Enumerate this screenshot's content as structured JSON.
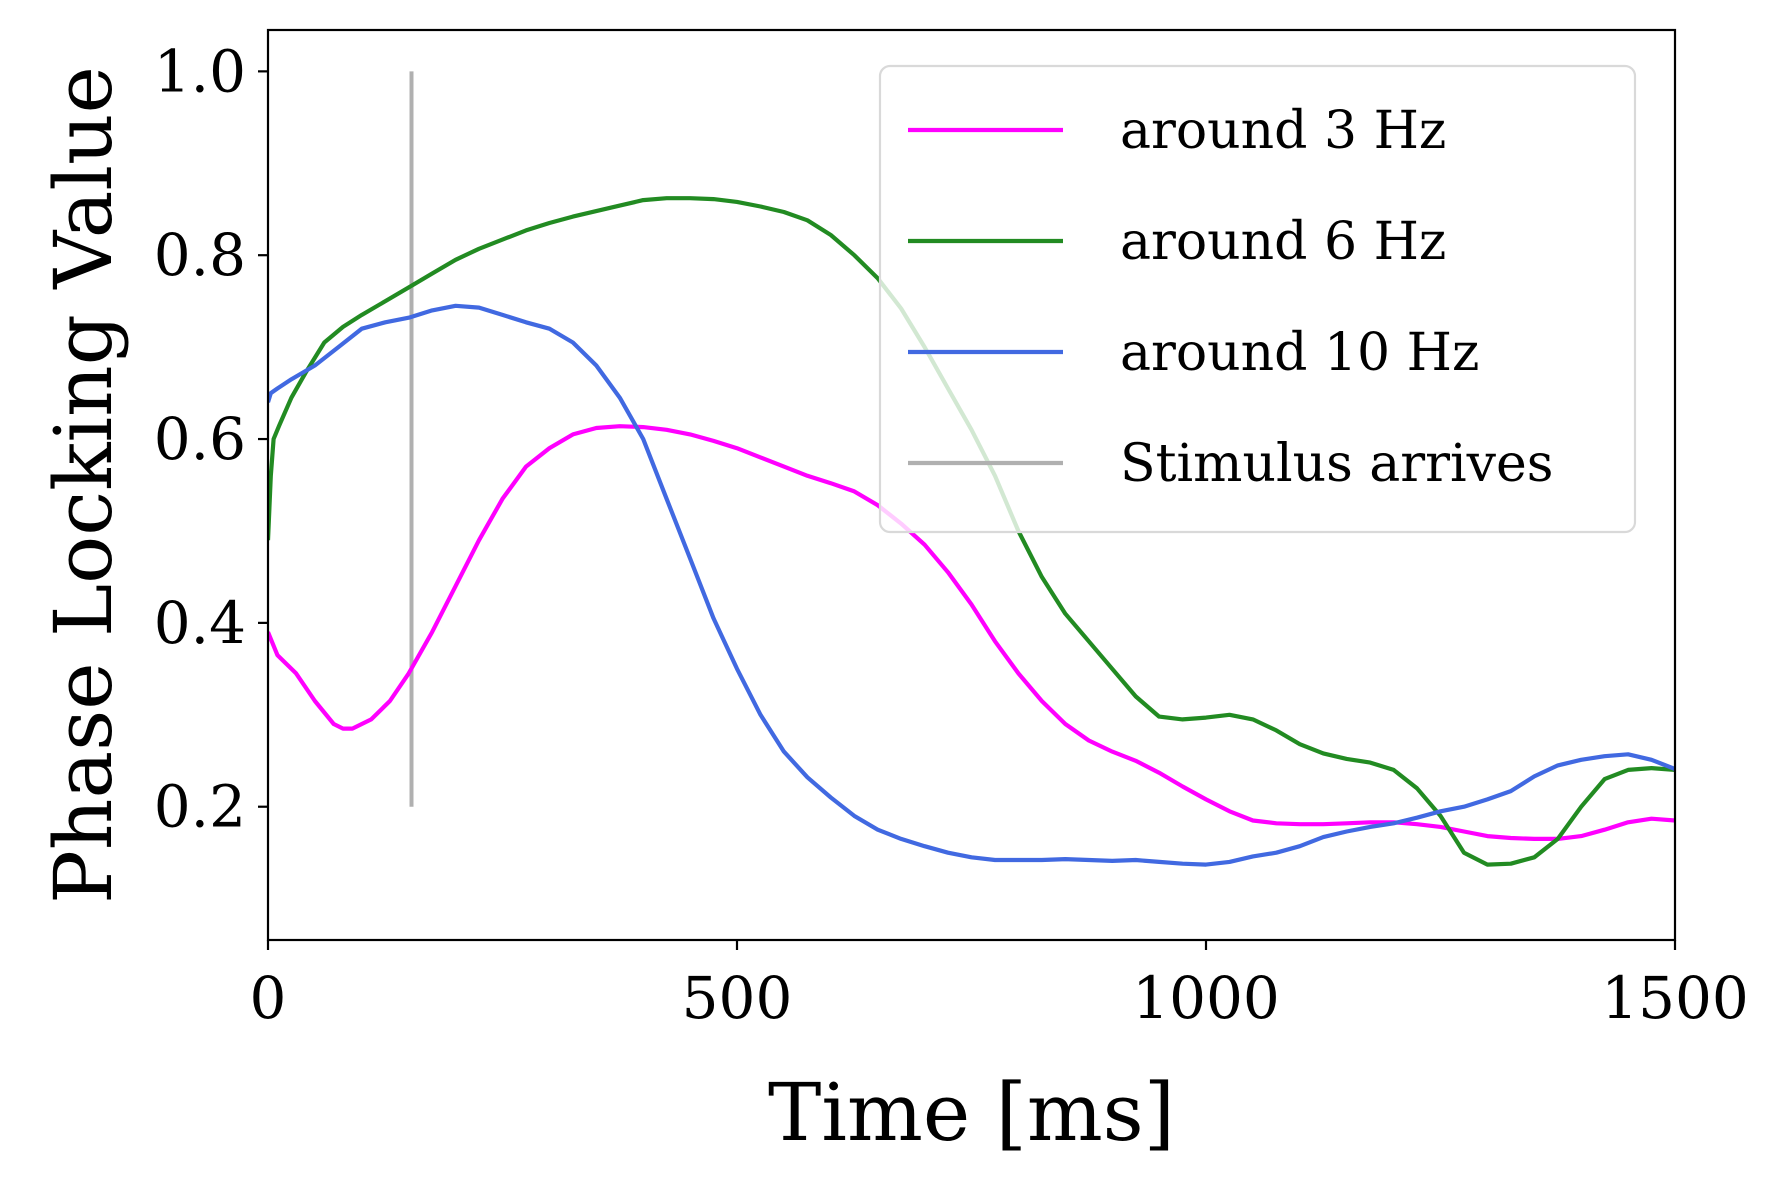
{
  "chart_data": {
    "type": "line",
    "xlabel": "Time [ms]",
    "ylabel": "Phase Locking Value",
    "xlim": [
      0,
      1500
    ],
    "ylim": [
      0.055,
      1.045
    ],
    "xticks": [
      0,
      500,
      1000,
      1500
    ],
    "yticks": [
      0.2,
      0.4,
      0.6,
      0.8,
      1.0
    ],
    "xtick_labels": [
      "0",
      "500",
      "1000",
      "1500"
    ],
    "ytick_labels": [
      "0.2",
      "0.4",
      "0.6",
      "0.8",
      "1.0"
    ],
    "grid": false,
    "legend_position": "top-right",
    "series": [
      {
        "name": "around 3 Hz",
        "color": "#ff00ff",
        "x": [
          0,
          10,
          30,
          50,
          70,
          80,
          90,
          110,
          130,
          150,
          175,
          200,
          225,
          250,
          275,
          300,
          325,
          350,
          375,
          400,
          425,
          450,
          475,
          500,
          525,
          550,
          575,
          600,
          625,
          650,
          675,
          700,
          725,
          750,
          775,
          800,
          825,
          850,
          875,
          900,
          925,
          950,
          975,
          1000,
          1025,
          1050,
          1075,
          1100,
          1125,
          1150,
          1175,
          1200,
          1225,
          1250,
          1275,
          1300,
          1325,
          1350,
          1375,
          1400,
          1425,
          1450,
          1475,
          1500
        ],
        "y": [
          0.39,
          0.365,
          0.345,
          0.315,
          0.29,
          0.285,
          0.285,
          0.295,
          0.315,
          0.345,
          0.39,
          0.44,
          0.49,
          0.535,
          0.57,
          0.59,
          0.605,
          0.612,
          0.614,
          0.613,
          0.61,
          0.605,
          0.598,
          0.59,
          0.58,
          0.57,
          0.56,
          0.552,
          0.543,
          0.528,
          0.508,
          0.485,
          0.455,
          0.42,
          0.38,
          0.345,
          0.315,
          0.29,
          0.272,
          0.26,
          0.25,
          0.237,
          0.222,
          0.208,
          0.195,
          0.185,
          0.182,
          0.181,
          0.181,
          0.182,
          0.183,
          0.183,
          0.181,
          0.178,
          0.173,
          0.168,
          0.166,
          0.165,
          0.165,
          0.168,
          0.175,
          0.183,
          0.187,
          0.185
        ]
      },
      {
        "name": "around 6 Hz",
        "color": "#228b22",
        "x": [
          0,
          3,
          6,
          12,
          25,
          40,
          60,
          80,
          100,
          125,
          150,
          175,
          200,
          225,
          250,
          275,
          300,
          325,
          350,
          375,
          400,
          425,
          450,
          475,
          500,
          525,
          550,
          575,
          600,
          625,
          650,
          675,
          700,
          725,
          750,
          775,
          800,
          825,
          850,
          875,
          900,
          925,
          950,
          975,
          1000,
          1025,
          1050,
          1075,
          1100,
          1125,
          1150,
          1175,
          1200,
          1225,
          1250,
          1275,
          1300,
          1325,
          1350,
          1375,
          1400,
          1425,
          1450,
          1475,
          1500
        ],
        "y": [
          0.49,
          0.56,
          0.6,
          0.615,
          0.645,
          0.672,
          0.705,
          0.722,
          0.735,
          0.75,
          0.765,
          0.78,
          0.795,
          0.807,
          0.817,
          0.827,
          0.835,
          0.842,
          0.848,
          0.854,
          0.86,
          0.862,
          0.862,
          0.861,
          0.858,
          0.853,
          0.847,
          0.838,
          0.822,
          0.8,
          0.775,
          0.742,
          0.7,
          0.655,
          0.61,
          0.56,
          0.5,
          0.45,
          0.41,
          0.38,
          0.35,
          0.32,
          0.298,
          0.295,
          0.297,
          0.3,
          0.295,
          0.283,
          0.268,
          0.258,
          0.252,
          0.248,
          0.24,
          0.22,
          0.19,
          0.15,
          0.137,
          0.138,
          0.145,
          0.165,
          0.2,
          0.23,
          0.24,
          0.242,
          0.24
        ]
      },
      {
        "name": "around 10 Hz",
        "color": "#4169e1",
        "x": [
          0,
          3,
          10,
          25,
          50,
          75,
          100,
          125,
          150,
          175,
          200,
          225,
          250,
          275,
          300,
          325,
          350,
          375,
          400,
          425,
          450,
          475,
          500,
          525,
          550,
          575,
          600,
          625,
          650,
          675,
          700,
          725,
          750,
          775,
          800,
          825,
          850,
          875,
          900,
          925,
          950,
          975,
          1000,
          1025,
          1050,
          1075,
          1100,
          1125,
          1150,
          1175,
          1200,
          1225,
          1250,
          1275,
          1300,
          1325,
          1350,
          1375,
          1400,
          1425,
          1450,
          1475,
          1500
        ],
        "y": [
          0.64,
          0.65,
          0.655,
          0.665,
          0.68,
          0.7,
          0.72,
          0.727,
          0.732,
          0.74,
          0.745,
          0.743,
          0.735,
          0.727,
          0.72,
          0.705,
          0.68,
          0.645,
          0.6,
          0.535,
          0.47,
          0.405,
          0.35,
          0.3,
          0.26,
          0.232,
          0.21,
          0.19,
          0.175,
          0.165,
          0.157,
          0.15,
          0.145,
          0.142,
          0.142,
          0.142,
          0.143,
          0.142,
          0.141,
          0.142,
          0.14,
          0.138,
          0.137,
          0.14,
          0.146,
          0.15,
          0.157,
          0.167,
          0.173,
          0.178,
          0.182,
          0.188,
          0.195,
          0.2,
          0.208,
          0.217,
          0.233,
          0.245,
          0.251,
          0.255,
          0.257,
          0.251,
          0.241
        ]
      },
      {
        "name": "Stimulus arrives",
        "color": "#b0b0b0",
        "x": [
          153,
          153
        ],
        "y": [
          0.2,
          1.0
        ]
      }
    ]
  }
}
